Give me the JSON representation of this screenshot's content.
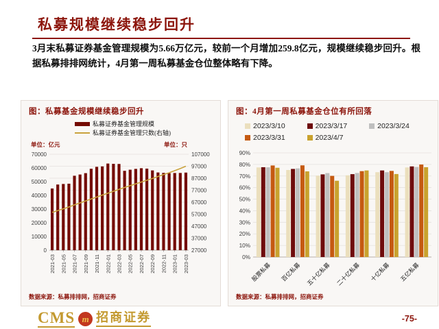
{
  "header": {
    "title": "私募规模继续稳步回升",
    "paragraph": "3月末私募证券基金管理规模为5.66万亿元，较前一个月增加259.8亿元，规模继续稳步回升。根据私募排排网统计，4月第一周私募基金仓位整体略有下降。"
  },
  "colors": {
    "accent_dark_red": "#8C150C",
    "bar_maroon": "#740B04",
    "line_gold": "#C9A23C",
    "footer_gold": "#C3992F",
    "logo_red": "#C2371F",
    "gridline": "#e4e1de"
  },
  "chart_data": [
    {
      "type": "bar",
      "title": "图：私募基金规模继续稳步回升",
      "unit_left": "单位：亿元",
      "unit_right": "单位：只",
      "bar_series_label": "私募证券基金管理规模",
      "line_series_label": "私募证券基金管理只数(右轴)",
      "x": [
        "2021-03",
        "2021-04",
        "2021-05",
        "2021-06",
        "2021-07",
        "2021-08",
        "2021-09",
        "2021-10",
        "2021-11",
        "2021-12",
        "2022-01",
        "2022-02",
        "2022-03",
        "2022-04",
        "2022-05",
        "2022-06",
        "2022-07",
        "2022-08",
        "2022-09",
        "2022-10",
        "2022-11",
        "2022-12",
        "2023-01",
        "2023-02",
        "2023-03"
      ],
      "bar_values": [
        45000,
        47900,
        48300,
        48500,
        54300,
        55200,
        56200,
        59400,
        60800,
        61100,
        63200,
        63000,
        62900,
        57900,
        58700,
        59300,
        59800,
        59500,
        58200,
        56700,
        56400,
        56200,
        56300,
        56340,
        56600
      ],
      "line_values": [
        58500,
        60000,
        61500,
        63000,
        64800,
        66400,
        68000,
        69700,
        71300,
        72900,
        74500,
        76100,
        77700,
        79300,
        80800,
        82300,
        83800,
        85300,
        86800,
        88400,
        90000,
        91600,
        93300,
        95100,
        97000
      ],
      "left_axis": {
        "min": 0,
        "max": 70000,
        "ticks": [
          0,
          10000,
          20000,
          30000,
          40000,
          50000,
          60000,
          70000
        ]
      },
      "right_axis": {
        "min": 27000,
        "max": 107000,
        "ticks": [
          27000,
          37000,
          47000,
          57000,
          67000,
          77000,
          87000,
          97000,
          107000
        ]
      },
      "x_label_every": 2,
      "source": "数据来源：私募排排网，招商证券"
    },
    {
      "type": "bar",
      "title": "图：4月第一周私募基金仓位有所回落",
      "categories": [
        "股票私募",
        "百亿私募",
        "五十亿私募",
        "二十亿私募",
        "十亿私募",
        "五亿私募"
      ],
      "series": [
        {
          "name": "2023/3/10",
          "color": "#EBDFBD",
          "values": [
            77.4,
            75.2,
            70.3,
            70.6,
            73.3,
            77.4
          ]
        },
        {
          "name": "2023/3/17",
          "color": "#6E0B0C",
          "values": [
            77.6,
            76.1,
            71.4,
            71.6,
            74.8,
            78.3
          ]
        },
        {
          "name": "2023/3/24",
          "color": "#BFBFBF",
          "values": [
            77.5,
            76.6,
            72.5,
            72.6,
            73.3,
            77.8
          ]
        },
        {
          "name": "2023/3/31",
          "color": "#C55A11",
          "values": [
            79.1,
            79.2,
            70.1,
            74.2,
            74.4,
            79.9
          ]
        },
        {
          "name": "2023/4/7",
          "color": "#C9A22E",
          "values": [
            77.1,
            74.0,
            65.9,
            74.8,
            71.7,
            77.6
          ]
        }
      ],
      "y_axis": {
        "min": 0,
        "max": 90,
        "ticks": [
          0,
          10,
          20,
          30,
          40,
          50,
          60,
          70,
          80,
          90
        ],
        "suffix": "%"
      },
      "legend_position": "top",
      "grid": true,
      "source": "数据来源：私募排排网，招商证券"
    }
  ],
  "footer": {
    "logo_cms": "CMS",
    "logo_mark": "m",
    "logo_name": "招商证券",
    "page_number": "-75-"
  }
}
